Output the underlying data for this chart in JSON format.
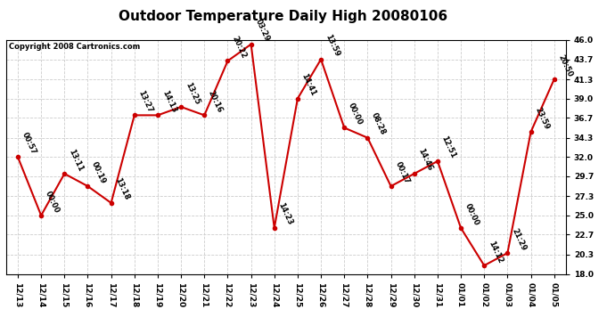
{
  "title": "Outdoor Temperature Daily High 20080106",
  "copyright": "Copyright 2008 Cartronics.com",
  "x_labels_display": [
    "12/13",
    "12/14",
    "12/15",
    "12/16",
    "12/17",
    "12/18",
    "12/19",
    "12/20",
    "12/21",
    "12/22",
    "12/23",
    "12/24",
    "12/25",
    "12/26",
    "12/27",
    "12/28",
    "12/29",
    "12/30",
    "12/31",
    "01/01",
    "01/02",
    "01/03",
    "01/04",
    "01/05"
  ],
  "values": [
    32.0,
    25.0,
    30.0,
    28.5,
    26.5,
    37.0,
    37.0,
    38.0,
    37.0,
    43.5,
    45.5,
    23.5,
    39.0,
    43.7,
    35.5,
    34.3,
    28.5,
    30.0,
    31.5,
    23.5,
    19.0,
    20.5,
    35.0,
    41.3
  ],
  "point_labels": [
    "00:57",
    "00:00",
    "13:11",
    "00:19",
    "13:18",
    "13:27",
    "14:13",
    "13:25",
    "20:16",
    "20:22",
    "03:29",
    "14:23",
    "14:41",
    "13:59",
    "00:00",
    "08:28",
    "00:17",
    "14:46",
    "12:51",
    "00:00",
    "14:12",
    "21:29",
    "23:59",
    "20:50"
  ],
  "yticks": [
    18.0,
    20.3,
    22.7,
    25.0,
    27.3,
    29.7,
    32.0,
    34.3,
    36.7,
    39.0,
    41.3,
    43.7,
    46.0
  ],
  "ylim": [
    18.0,
    46.0
  ],
  "line_color": "#cc0000",
  "marker_color": "#cc0000",
  "bg_color": "#ffffff",
  "grid_color": "#cccccc",
  "title_fontsize": 11,
  "label_fontsize": 6.0,
  "tick_fontsize": 6.5,
  "copyright_fontsize": 6.0
}
